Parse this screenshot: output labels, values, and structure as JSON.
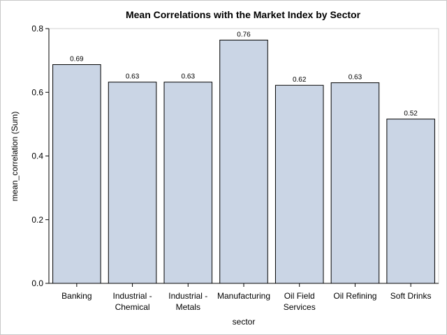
{
  "chart_data": {
    "type": "bar",
    "title": "Mean Correlations with the Market Index by Sector",
    "xlabel": "sector",
    "ylabel": "mean_correlation (Sum)",
    "categories": [
      [
        "Banking"
      ],
      [
        "Industrial -",
        "Chemical"
      ],
      [
        "Industrial -",
        "Metals"
      ],
      [
        "Manufacturing"
      ],
      [
        "Oil Field",
        "Services"
      ],
      [
        "Oil Refining"
      ],
      [
        "Soft Drinks"
      ]
    ],
    "values": [
      0.687,
      0.632,
      0.632,
      0.764,
      0.622,
      0.63,
      0.516
    ],
    "value_labels": [
      "0.69",
      "0.63",
      "0.63",
      "0.76",
      "0.62",
      "0.63",
      "0.52"
    ],
    "ylim": [
      0,
      0.8
    ],
    "yticks": [
      0,
      0.2,
      0.4,
      0.6,
      0.8
    ],
    "ytick_labels": [
      "0.0",
      "0.2",
      "0.4",
      "0.6",
      "0.8"
    ],
    "grid": false,
    "legend": "none",
    "bar_color": "#cad5e5"
  }
}
